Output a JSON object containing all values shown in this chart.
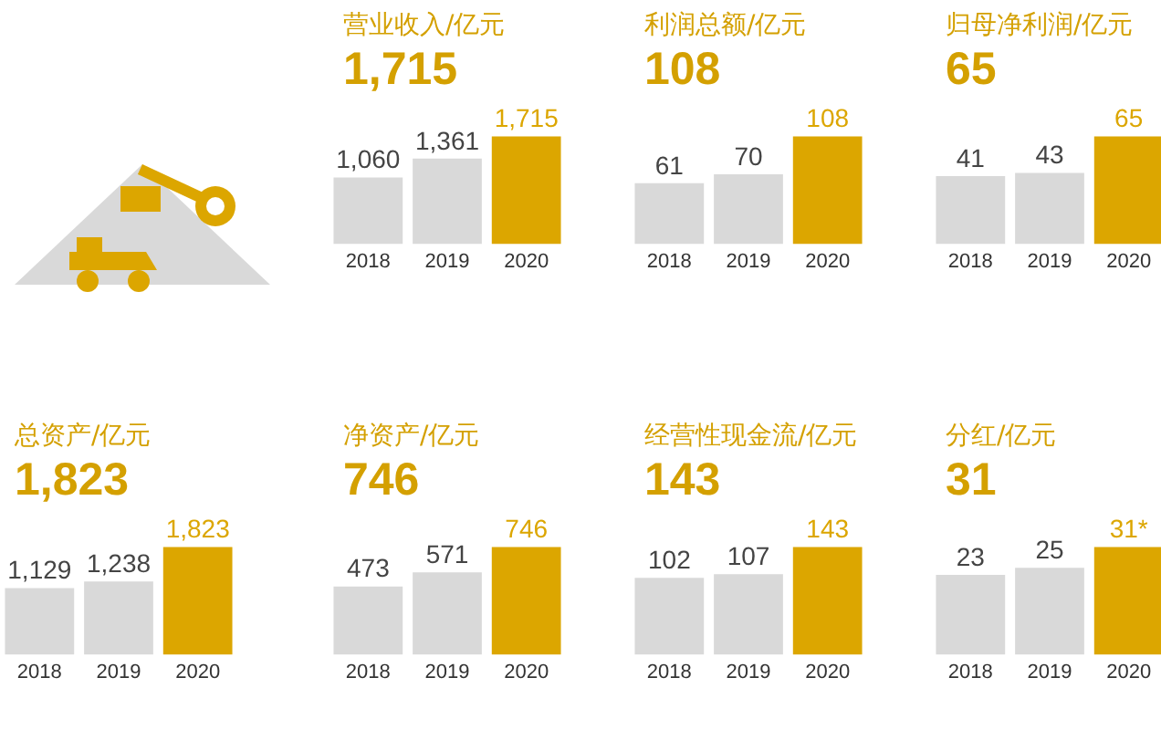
{
  "chart_data": [
    {
      "type": "bar",
      "title": "营业收入/亿元",
      "subtitle": "1,715",
      "categories": [
        "2018",
        "2019",
        "2020"
      ],
      "values": [
        1060,
        1361,
        1715
      ],
      "value_labels": [
        "1,060",
        "1,361",
        "1,715"
      ],
      "colors": [
        "#d9d9d9",
        "#d9d9d9",
        "#dca600"
      ],
      "tick_labels": "x"
    },
    {
      "type": "bar",
      "title": "利润总额/亿元",
      "subtitle": "108",
      "categories": [
        "2018",
        "2019",
        "2020"
      ],
      "values": [
        61,
        70,
        108
      ],
      "value_labels": [
        "61",
        "70",
        "108"
      ],
      "colors": [
        "#d9d9d9",
        "#d9d9d9",
        "#dca600"
      ],
      "tick_labels": "x"
    },
    {
      "type": "bar",
      "title": "归母净利润/亿元",
      "subtitle": "65",
      "categories": [
        "2018",
        "2019",
        "2020"
      ],
      "values": [
        41,
        43,
        65
      ],
      "value_labels": [
        "41",
        "43",
        "65"
      ],
      "colors": [
        "#d9d9d9",
        "#d9d9d9",
        "#dca600"
      ],
      "tick_labels": "x"
    },
    {
      "type": "bar",
      "title": "总资产/亿元",
      "subtitle": "1,823",
      "categories": [
        "2018",
        "2019",
        "2020"
      ],
      "values": [
        1129,
        1238,
        1823
      ],
      "value_labels": [
        "1,129",
        "1,238",
        "1,823"
      ],
      "colors": [
        "#d9d9d9",
        "#d9d9d9",
        "#dca600"
      ],
      "tick_labels": "x"
    },
    {
      "type": "bar",
      "title": "净资产/亿元",
      "subtitle": "746",
      "categories": [
        "2018",
        "2019",
        "2020"
      ],
      "values": [
        473,
        571,
        746
      ],
      "value_labels": [
        "473",
        "571",
        "746"
      ],
      "colors": [
        "#d9d9d9",
        "#d9d9d9",
        "#dca600"
      ],
      "tick_labels": "x"
    },
    {
      "type": "bar",
      "title": "经营性现金流/亿元",
      "subtitle": "143",
      "categories": [
        "2018",
        "2019",
        "2020"
      ],
      "values": [
        102,
        107,
        143
      ],
      "value_labels": [
        "102",
        "107",
        "143"
      ],
      "colors": [
        "#d9d9d9",
        "#d9d9d9",
        "#dca600"
      ],
      "tick_labels": "x"
    },
    {
      "type": "bar",
      "title": "分红/亿元",
      "subtitle": "31",
      "categories": [
        "2018",
        "2019",
        "2020"
      ],
      "values": [
        23,
        25,
        31
      ],
      "value_labels": [
        "23",
        "25",
        "31*"
      ],
      "colors": [
        "#d9d9d9",
        "#d9d9d9",
        "#dca600"
      ],
      "tick_labels": "x"
    }
  ]
}
